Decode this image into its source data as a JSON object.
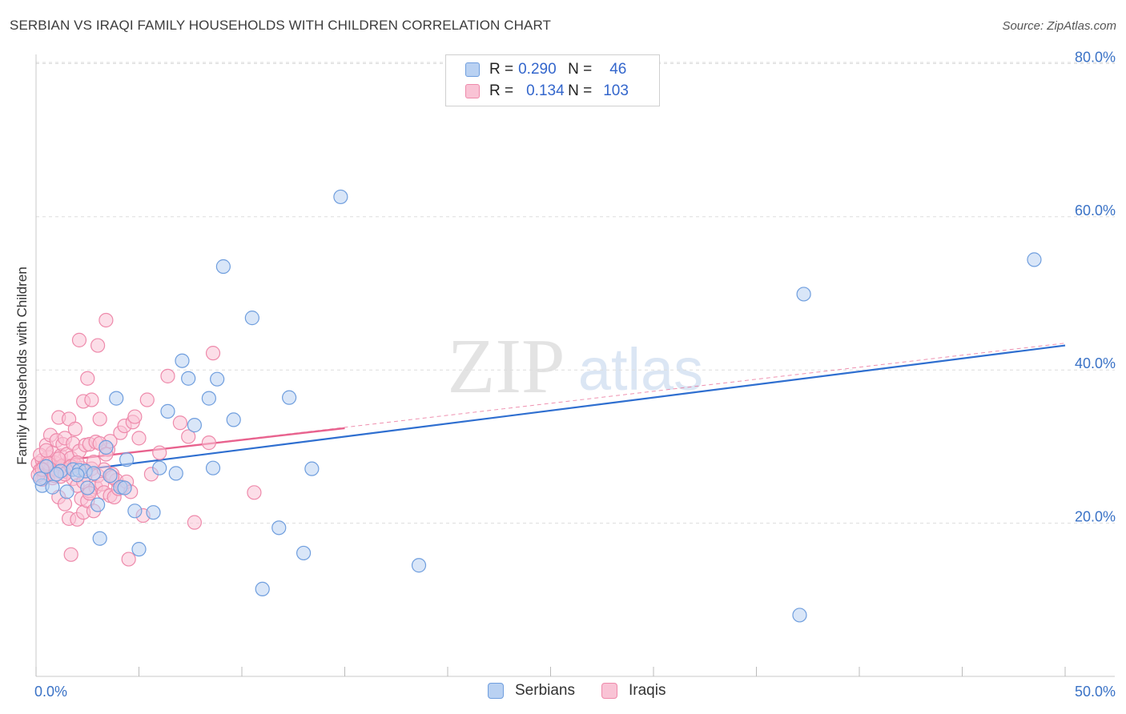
{
  "header": {
    "title": "SERBIAN VS IRAQI FAMILY HOUSEHOLDS WITH CHILDREN CORRELATION CHART",
    "source": "Source: ZipAtlas.com"
  },
  "legend": {
    "serbians": {
      "r_label": "R =",
      "r_value": "0.290",
      "n_label": "N =",
      "n_value": "46"
    },
    "iraqis": {
      "r_label": "R =",
      "r_value": "0.134",
      "n_label": "N =",
      "n_value": "103"
    }
  },
  "watermark": {
    "zip": "ZIP",
    "atlas": "atlas"
  },
  "colors": {
    "serbians_fill": "#b9d1f2",
    "serbians_stroke": "#6f9ede",
    "serbians_line": "#2f6fd0",
    "iraqis_fill": "#f9c3d5",
    "iraqis_stroke": "#ee8aab",
    "iraqis_line": "#e8628e",
    "axis_text": "#3a72c6",
    "grid": "#dddddd"
  },
  "chart_data": {
    "type": "scatter",
    "title": "SERBIAN VS IRAQI FAMILY HOUSEHOLDS WITH CHILDREN CORRELATION CHART",
    "xlabel": "",
    "ylabel": "Family Households with Children",
    "xlim": [
      0,
      50
    ],
    "ylim": [
      0,
      82
    ],
    "x_tick_labels": [
      "0.0%",
      "50.0%"
    ],
    "y_ticks": [
      20,
      40,
      60,
      80
    ],
    "y_tick_labels": [
      "20.0%",
      "40.0%",
      "60.0%",
      "80.0%"
    ],
    "grid": true,
    "legend_position": "bottom-center",
    "series": [
      {
        "name": "Serbians",
        "r": 0.29,
        "n": 46,
        "trend": {
          "x": [
            0,
            50
          ],
          "y": [
            26.2,
            43.2
          ]
        },
        "points": [
          [
            0.3,
            24.9
          ],
          [
            0.8,
            24.7
          ],
          [
            1.2,
            26.8
          ],
          [
            1.5,
            24.1
          ],
          [
            1.8,
            27.0
          ],
          [
            2.1,
            26.9
          ],
          [
            2.4,
            26.8
          ],
          [
            2.8,
            26.5
          ],
          [
            3.0,
            22.4
          ],
          [
            3.1,
            18.0
          ],
          [
            3.4,
            29.9
          ],
          [
            3.9,
            36.3
          ],
          [
            4.1,
            24.7
          ],
          [
            4.4,
            28.3
          ],
          [
            4.8,
            21.6
          ],
          [
            5.0,
            16.6
          ],
          [
            5.7,
            21.4
          ],
          [
            6.0,
            27.2
          ],
          [
            6.4,
            34.6
          ],
          [
            6.8,
            26.5
          ],
          [
            7.1,
            41.2
          ],
          [
            7.4,
            38.9
          ],
          [
            7.7,
            32.8
          ],
          [
            8.4,
            36.3
          ],
          [
            8.6,
            27.2
          ],
          [
            8.8,
            38.8
          ],
          [
            9.1,
            53.5
          ],
          [
            9.6,
            33.5
          ],
          [
            10.5,
            46.8
          ],
          [
            11.0,
            11.4
          ],
          [
            11.8,
            19.4
          ],
          [
            12.3,
            36.4
          ],
          [
            13.0,
            16.1
          ],
          [
            13.4,
            27.1
          ],
          [
            14.8,
            62.6
          ],
          [
            18.6,
            14.5
          ],
          [
            37.1,
            8.0
          ],
          [
            37.3,
            49.9
          ],
          [
            48.5,
            54.4
          ],
          [
            2.5,
            24.6
          ],
          [
            1.0,
            26.4
          ],
          [
            0.5,
            27.4
          ],
          [
            0.2,
            25.8
          ],
          [
            3.6,
            26.2
          ],
          [
            4.3,
            24.6
          ],
          [
            2.0,
            26.3
          ]
        ]
      },
      {
        "name": "Iraqis",
        "r": 0.134,
        "n": 103,
        "trend": {
          "x": [
            0,
            15
          ],
          "y": [
            27.8,
            32.4
          ]
        },
        "trend_extended": {
          "x": [
            0,
            50
          ],
          "y": [
            27.8,
            43.5
          ]
        },
        "points": [
          [
            0.1,
            27.8
          ],
          [
            0.2,
            26.9
          ],
          [
            0.3,
            28.2
          ],
          [
            0.3,
            25.7
          ],
          [
            0.4,
            27.4
          ],
          [
            0.5,
            30.2
          ],
          [
            0.5,
            26.4
          ],
          [
            0.6,
            28.6
          ],
          [
            0.7,
            31.5
          ],
          [
            0.7,
            27.1
          ],
          [
            0.8,
            29.2
          ],
          [
            0.8,
            25.9
          ],
          [
            0.9,
            27.9
          ],
          [
            1.0,
            30.8
          ],
          [
            1.0,
            26.9
          ],
          [
            1.1,
            23.4
          ],
          [
            1.1,
            33.8
          ],
          [
            1.2,
            28.8
          ],
          [
            1.2,
            26.1
          ],
          [
            1.3,
            30.3
          ],
          [
            1.3,
            27.5
          ],
          [
            1.4,
            22.5
          ],
          [
            1.4,
            31.1
          ],
          [
            1.5,
            29.0
          ],
          [
            1.5,
            26.7
          ],
          [
            1.6,
            33.6
          ],
          [
            1.6,
            20.6
          ],
          [
            1.7,
            15.9
          ],
          [
            1.7,
            28.5
          ],
          [
            1.8,
            25.8
          ],
          [
            1.8,
            30.4
          ],
          [
            1.9,
            27.6
          ],
          [
            1.9,
            32.3
          ],
          [
            2.0,
            24.9
          ],
          [
            2.0,
            20.5
          ],
          [
            2.1,
            43.9
          ],
          [
            2.1,
            29.4
          ],
          [
            2.2,
            27.2
          ],
          [
            2.2,
            23.2
          ],
          [
            2.3,
            35.9
          ],
          [
            2.3,
            21.4
          ],
          [
            2.4,
            30.2
          ],
          [
            2.4,
            26.3
          ],
          [
            2.5,
            38.9
          ],
          [
            2.5,
            22.9
          ],
          [
            2.6,
            30.3
          ],
          [
            2.6,
            24.2
          ],
          [
            2.7,
            36.1
          ],
          [
            2.7,
            27.1
          ],
          [
            2.8,
            21.6
          ],
          [
            2.9,
            24.7
          ],
          [
            2.9,
            30.6
          ],
          [
            3.0,
            26.2
          ],
          [
            3.0,
            43.2
          ],
          [
            3.1,
            33.6
          ],
          [
            3.2,
            25.1
          ],
          [
            3.3,
            27.0
          ],
          [
            3.3,
            24.0
          ],
          [
            3.4,
            46.5
          ],
          [
            3.5,
            29.6
          ],
          [
            3.6,
            23.6
          ],
          [
            3.6,
            30.7
          ],
          [
            3.7,
            26.4
          ],
          [
            3.8,
            23.4
          ],
          [
            3.9,
            25.6
          ],
          [
            4.0,
            24.5
          ],
          [
            4.1,
            31.8
          ],
          [
            4.2,
            24.7
          ],
          [
            4.3,
            32.7
          ],
          [
            4.4,
            25.4
          ],
          [
            4.5,
            15.3
          ],
          [
            4.6,
            24.1
          ],
          [
            4.7,
            33.2
          ],
          [
            4.8,
            33.9
          ],
          [
            5.0,
            31.1
          ],
          [
            5.2,
            21.0
          ],
          [
            5.4,
            36.1
          ],
          [
            5.6,
            26.4
          ],
          [
            6.0,
            29.2
          ],
          [
            6.4,
            39.2
          ],
          [
            7.0,
            33.1
          ],
          [
            7.4,
            31.3
          ],
          [
            7.7,
            20.1
          ],
          [
            8.4,
            30.5
          ],
          [
            8.6,
            42.2
          ],
          [
            10.6,
            24.0
          ],
          [
            0.2,
            28.9
          ],
          [
            0.4,
            25.9
          ],
          [
            0.6,
            27.8
          ],
          [
            0.9,
            26.2
          ],
          [
            1.1,
            28.4
          ],
          [
            1.4,
            26.4
          ],
          [
            1.7,
            27.4
          ],
          [
            2.0,
            27.9
          ],
          [
            2.3,
            25.4
          ],
          [
            2.6,
            23.9
          ],
          [
            2.8,
            28.0
          ],
          [
            3.1,
            30.4
          ],
          [
            3.4,
            29.0
          ],
          [
            3.7,
            26.0
          ],
          [
            0.1,
            26.3
          ],
          [
            0.3,
            27.0
          ],
          [
            0.5,
            29.5
          ]
        ]
      }
    ]
  }
}
